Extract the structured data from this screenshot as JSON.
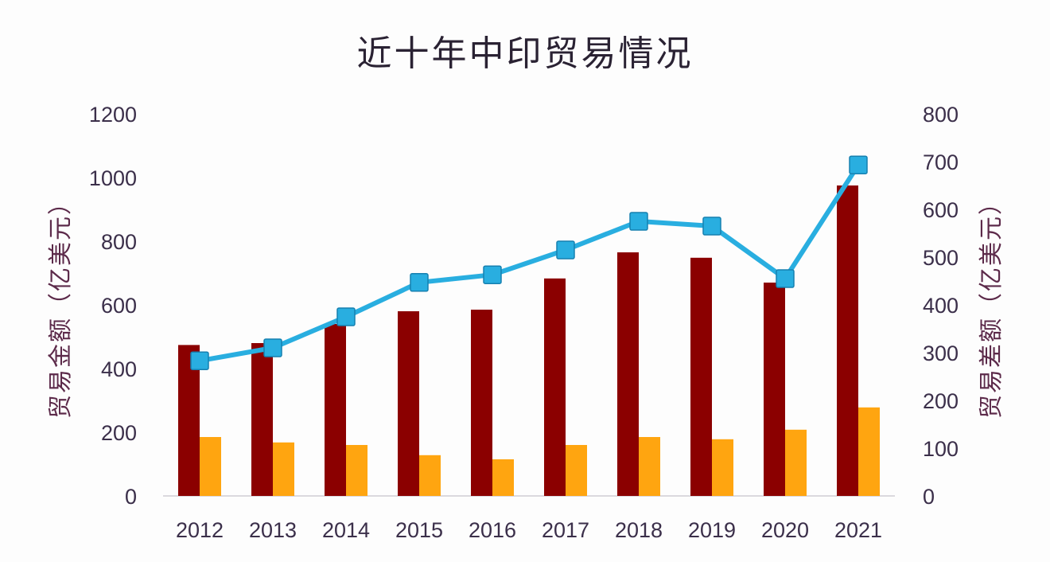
{
  "chart_data": {
    "type": "bar",
    "title": "近十年中印贸易情况",
    "categories": [
      "2012",
      "2013",
      "2014",
      "2015",
      "2016",
      "2017",
      "2018",
      "2019",
      "2020",
      "2021"
    ],
    "ylabel": "贸易金额（亿美元）",
    "y2label": "贸易差额（亿美元）",
    "ylim": [
      0,
      1200
    ],
    "y2lim": [
      0,
      800
    ],
    "yticks": [
      "0",
      "200",
      "400",
      "600",
      "800",
      "1000",
      "1200"
    ],
    "y2ticks": [
      "0",
      "100",
      "200",
      "300",
      "400",
      "500",
      "600",
      "700",
      "800"
    ],
    "series": [
      {
        "axis": "left",
        "kind": "bar",
        "color": "#8b0000",
        "values": [
          474,
          480,
          540,
          580,
          585,
          683,
          765,
          748,
          670,
          975
        ]
      },
      {
        "axis": "left",
        "kind": "bar",
        "color": "#ffa510",
        "values": [
          185,
          168,
          160,
          128,
          115,
          160,
          185,
          178,
          208,
          278
        ]
      },
      {
        "axis": "right",
        "kind": "line",
        "color": "#29aee0",
        "values": [
          283,
          310,
          375,
          447,
          463,
          515,
          575,
          565,
          455,
          693
        ]
      }
    ],
    "grid": false,
    "legend": "none"
  }
}
